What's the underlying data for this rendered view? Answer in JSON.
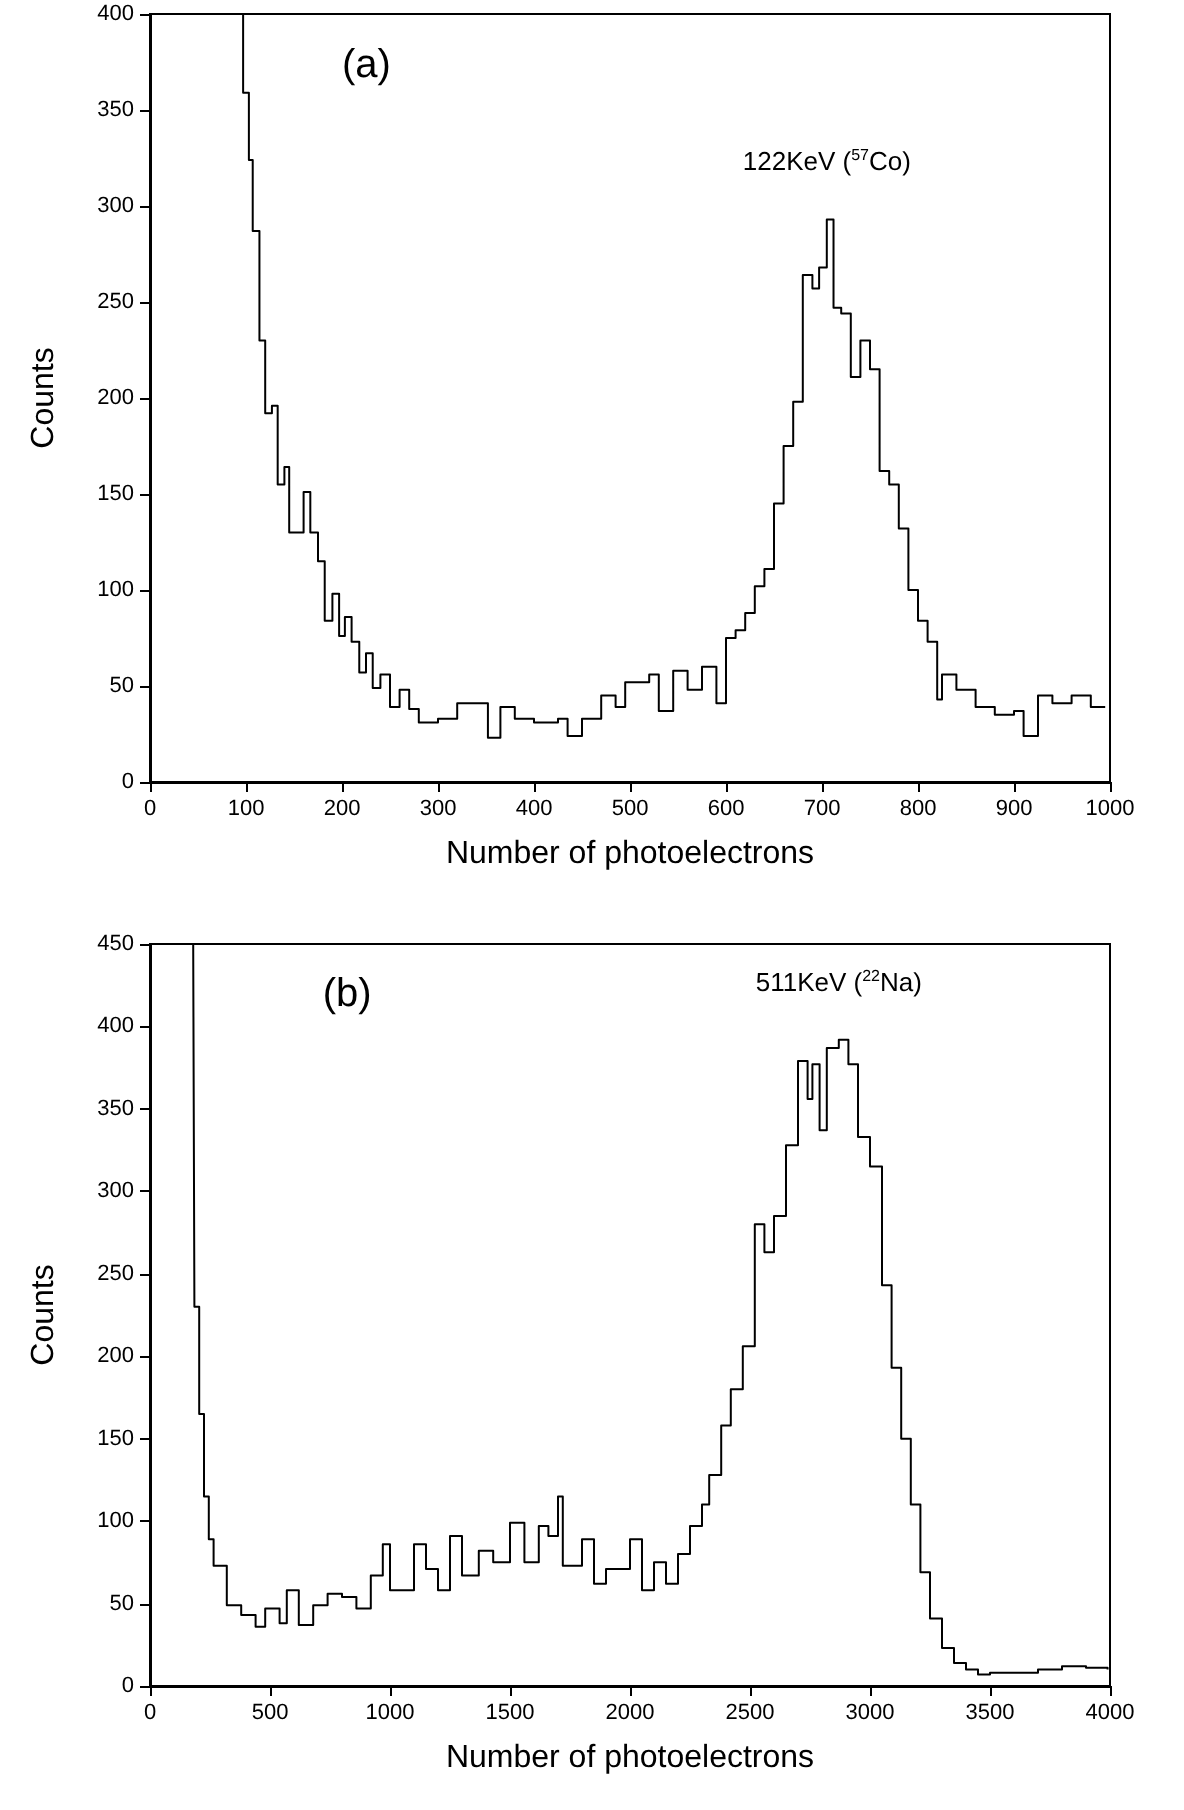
{
  "chart_data": [
    {
      "type": "step",
      "xlabel": "Number of photoelectrons",
      "ylabel": "Counts",
      "color": "#000000",
      "grid": false,
      "xlim": [
        0,
        1000
      ],
      "ylim": [
        0,
        400
      ],
      "xticks": [
        0,
        100,
        200,
        300,
        400,
        500,
        600,
        700,
        800,
        900,
        1000
      ],
      "yticks": [
        0,
        50,
        100,
        150,
        200,
        250,
        300,
        350,
        400
      ],
      "annotations": [
        "(a)",
        {
          "text": "122KeV ($^{57}$Co)",
          "x": 705,
          "y": 293
        }
      ],
      "x": [
        93,
        97,
        103,
        107,
        114,
        120,
        127,
        133,
        140,
        145,
        150,
        160,
        167,
        175,
        182,
        190,
        197,
        203,
        210,
        218,
        225,
        232,
        240,
        250,
        260,
        270,
        280,
        300,
        320,
        340,
        352,
        365,
        380,
        400,
        425,
        435,
        450,
        470,
        485,
        495,
        505,
        520,
        530,
        545,
        560,
        575,
        590,
        600,
        610,
        620,
        630,
        640,
        650,
        660,
        670,
        680,
        690,
        697,
        705,
        712,
        720,
        730,
        740,
        750,
        760,
        770,
        780,
        790,
        800,
        810,
        820,
        825,
        840,
        860,
        880,
        900,
        910,
        925,
        940,
        960,
        980,
        995
      ],
      "values": [
        400,
        359,
        324,
        287,
        230,
        192,
        196,
        155,
        164,
        130,
        130,
        151,
        130,
        115,
        84,
        98,
        76,
        86,
        73,
        57,
        67,
        49,
        56,
        39,
        48,
        38,
        31,
        33,
        41,
        41,
        23,
        39,
        33,
        31,
        33,
        24,
        33,
        45,
        39,
        52,
        52,
        56,
        37,
        58,
        48,
        60,
        41,
        75,
        79,
        88,
        102,
        111,
        145,
        175,
        198,
        264,
        257,
        268,
        293,
        247,
        244,
        211,
        230,
        215,
        162,
        155,
        132,
        100,
        84,
        73,
        43,
        56,
        48,
        39,
        35,
        37,
        24,
        45,
        41,
        45,
        39,
        39
      ]
    },
    {
      "type": "step",
      "xlabel": "Number of photoelectrons",
      "ylabel": "Counts",
      "color": "#000000",
      "grid": false,
      "xlim": [
        0,
        4000
      ],
      "ylim": [
        0,
        450
      ],
      "xticks": [
        0,
        500,
        1000,
        1500,
        2000,
        2500,
        3000,
        3500,
        4000
      ],
      "yticks": [
        0,
        50,
        100,
        150,
        200,
        250,
        300,
        350,
        400,
        450
      ],
      "annotations": [
        "(b)",
        {
          "text": "511KeV ($^{22}$Na)",
          "x": 2870,
          "y": 392
        }
      ],
      "x": [
        180,
        185,
        205,
        225,
        245,
        265,
        320,
        380,
        440,
        480,
        540,
        570,
        620,
        680,
        740,
        800,
        860,
        920,
        970,
        1000,
        1050,
        1100,
        1150,
        1200,
        1250,
        1300,
        1370,
        1430,
        1500,
        1560,
        1620,
        1660,
        1700,
        1720,
        1800,
        1850,
        1900,
        2000,
        2050,
        2100,
        2150,
        2200,
        2250,
        2300,
        2330,
        2380,
        2420,
        2470,
        2520,
        2560,
        2600,
        2650,
        2700,
        2740,
        2760,
        2790,
        2820,
        2870,
        2910,
        2950,
        3000,
        3050,
        3090,
        3130,
        3170,
        3210,
        3250,
        3300,
        3350,
        3400,
        3450,
        3500,
        3600,
        3700,
        3800,
        3900,
        3990
      ],
      "values": [
        450,
        230,
        165,
        115,
        89,
        73,
        49,
        43,
        36,
        47,
        38,
        58,
        37,
        49,
        56,
        54,
        47,
        67,
        86,
        58,
        58,
        86,
        71,
        58,
        91,
        67,
        82,
        75,
        99,
        75,
        97,
        91,
        115,
        73,
        89,
        62,
        71,
        89,
        58,
        75,
        62,
        80,
        97,
        110,
        128,
        158,
        180,
        206,
        280,
        263,
        285,
        328,
        379,
        356,
        377,
        337,
        387,
        392,
        377,
        333,
        315,
        243,
        193,
        150,
        110,
        69,
        41,
        23,
        14,
        10,
        7,
        8,
        8,
        10,
        12,
        11,
        10
      ]
    }
  ]
}
